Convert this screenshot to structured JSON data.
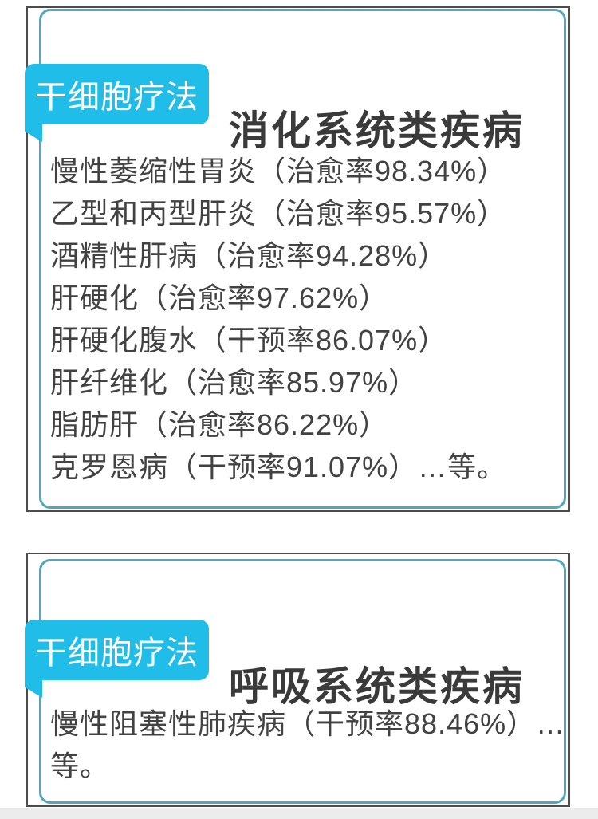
{
  "colors": {
    "badge_background": "#1fbde8",
    "badge_text": "#ffffff",
    "frame_teal": "#55a6bb",
    "frame_dark": "#4c4c4c",
    "title_text": "#3a3a3a",
    "body_text": "#424242"
  },
  "cards": [
    {
      "badge_label": "干细胞疗法",
      "title": "消化系统类疾病",
      "items": [
        "慢性萎缩性胃炎（治愈率98.34%）",
        "乙型和丙型肝炎（治愈率95.57%）",
        "酒精性肝病（治愈率94.28%）",
        "肝硬化（治愈率97.62%）",
        "肝硬化腹水（干预率86.07%）",
        "肝纤维化（治愈率85.97%）",
        "脂肪肝（治愈率86.22%）",
        "克罗恩病（干预率91.07%）…等。"
      ]
    },
    {
      "badge_label": "干细胞疗法",
      "title": "呼吸系统类疾病",
      "items": [
        "慢性阻塞性肺疾病（干预率88.46%）…等。"
      ]
    }
  ]
}
